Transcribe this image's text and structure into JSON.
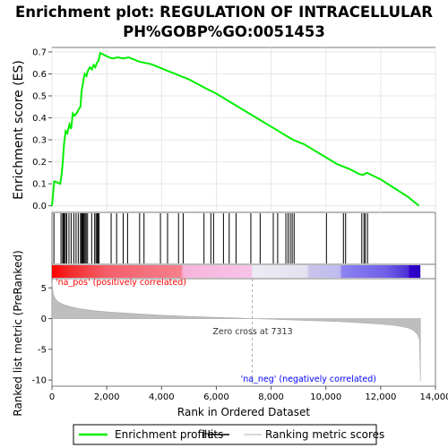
{
  "chart_data": {
    "type": "line",
    "title_line1": "Enrichment plot: REGULATION OF INTRACELLULAR",
    "title_line2": "PH%GOBP%GO:0051453",
    "xlabel": "Rank in Ordered Dataset",
    "ylabel_top": "Enrichment score (ES)",
    "ylabel_bottom": "Ranked list metric (PreRanked)",
    "xlim": [
      0,
      14000
    ],
    "x_ticks": [
      0,
      2000,
      4000,
      6000,
      8000,
      10000,
      12000,
      14000
    ],
    "x_tick_labels": [
      "0",
      "2,000",
      "4,000",
      "6,000",
      "8,000",
      "10,000",
      "12,000",
      "14,000"
    ],
    "es_ylim": [
      -0.03,
      0.72
    ],
    "es_ticks": [
      0.0,
      0.1,
      0.2,
      0.3,
      0.4,
      0.5,
      0.6,
      0.7
    ],
    "es_tick_labels": [
      "0.0",
      "0.1",
      "0.2",
      "0.3",
      "0.4",
      "0.5",
      "0.6",
      "0.7"
    ],
    "metric_ylim": [
      -11,
      6.5
    ],
    "metric_ticks": [
      5,
      0,
      -5,
      -10
    ],
    "metric_tick_labels": [
      "5",
      "0",
      "-5",
      "-10"
    ],
    "series": [
      {
        "name": "Enrichment profile",
        "color": "#00ee00",
        "x": [
          0,
          80,
          120,
          300,
          360,
          400,
          440,
          500,
          560,
          640,
          700,
          760,
          820,
          900,
          980,
          1040,
          1080,
          1120,
          1160,
          1200,
          1260,
          1300,
          1380,
          1460,
          1520,
          1580,
          1640,
          1700,
          1760,
          2000,
          2200,
          2400,
          2600,
          2800,
          3000,
          3200,
          3400,
          3600,
          3800,
          4000,
          4200,
          4400,
          4600,
          4800,
          5000,
          5300,
          5600,
          6000,
          6400,
          6800,
          7200,
          7600,
          8000,
          8400,
          8600,
          8800,
          9200,
          9600,
          10000,
          10400,
          10600,
          10900,
          11200,
          11350,
          11500,
          12000,
          12500,
          13000,
          13400
        ],
        "y": [
          0.0,
          0.11,
          0.11,
          0.1,
          0.15,
          0.21,
          0.28,
          0.34,
          0.33,
          0.37,
          0.35,
          0.42,
          0.41,
          0.42,
          0.44,
          0.45,
          0.52,
          0.55,
          0.58,
          0.6,
          0.59,
          0.61,
          0.63,
          0.62,
          0.64,
          0.63,
          0.65,
          0.66,
          0.695,
          0.68,
          0.67,
          0.675,
          0.67,
          0.675,
          0.665,
          0.655,
          0.65,
          0.645,
          0.635,
          0.625,
          0.615,
          0.605,
          0.595,
          0.585,
          0.575,
          0.555,
          0.535,
          0.51,
          0.48,
          0.45,
          0.42,
          0.39,
          0.36,
          0.33,
          0.315,
          0.3,
          0.28,
          0.25,
          0.22,
          0.19,
          0.18,
          0.165,
          0.145,
          0.14,
          0.15,
          0.12,
          0.08,
          0.04,
          0.0
        ]
      },
      {
        "name": "Hits",
        "color": "#000000",
        "positions": [
          70,
          330,
          390,
          420,
          450,
          490,
          540,
          620,
          700,
          800,
          880,
          960,
          1040,
          1080,
          1110,
          1140,
          1170,
          1210,
          1250,
          1300,
          1450,
          1560,
          1610,
          1650,
          1680,
          1720,
          2160,
          2360,
          2600,
          2760,
          3200,
          3360,
          3960,
          4220,
          4620,
          4790,
          5550,
          5800,
          5900,
          6260,
          6470,
          6720,
          7260,
          7600,
          8080,
          8240,
          8540,
          8620,
          8700,
          8770,
          8840,
          10020,
          10640,
          10720,
          11310,
          11390,
          11440,
          11520
        ]
      },
      {
        "name": "Ranking metric scores",
        "color": "#bebebe",
        "x": [
          0,
          50,
          100,
          200,
          400,
          700,
          1000,
          1500,
          2000,
          3000,
          4000,
          5000,
          6000,
          7000,
          7313,
          8000,
          9000,
          10000,
          11000,
          12000,
          12500,
          13000,
          13200,
          13350,
          13420,
          13450
        ],
        "y": [
          5.8,
          4.0,
          3.4,
          2.8,
          2.3,
          1.9,
          1.6,
          1.3,
          1.1,
          0.8,
          0.55,
          0.35,
          0.2,
          0.06,
          0.0,
          -0.1,
          -0.25,
          -0.4,
          -0.6,
          -0.9,
          -1.1,
          -1.5,
          -1.9,
          -2.6,
          -3.5,
          -10.2
        ]
      }
    ],
    "zero_cross": 7313,
    "annotations": {
      "pos_label": "'na_pos' (positively correlated)",
      "neg_label": "'na_neg' (negatively correlated)",
      "zero_cross_label": "Zero cross at 7313"
    },
    "colors": {
      "pos_text": "#ff0000",
      "neg_text": "#0000ff",
      "zero_line": "#aaaaaa"
    },
    "legend": {
      "placement": "bottom",
      "items": [
        "Enrichment profile",
        "Hits",
        "Ranking metric scores"
      ]
    }
  }
}
